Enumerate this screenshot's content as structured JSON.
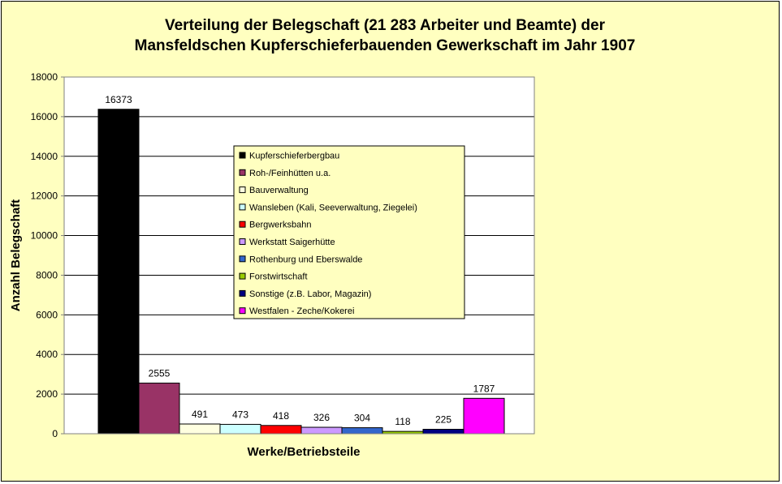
{
  "chart_data": {
    "type": "bar",
    "title_lines": [
      "Verteilung der Belegschaft (21 283 Arbeiter und Beamte) der",
      "Mansfeldschen Kupferschieferbauenden Gewerkschaft im Jahr 1907"
    ],
    "xlabel": "Werke/Betriebsteile",
    "ylabel": "Anzahl Belegschaft",
    "ylim": [
      0,
      18000
    ],
    "yticks": [
      "0",
      "2000",
      "4000",
      "6000",
      "8000",
      "10000",
      "12000",
      "14000",
      "16000",
      "18000"
    ],
    "grid": true,
    "legend_position": "center-right",
    "series": [
      {
        "name": "Kupferschieferbergbau",
        "value": 16373,
        "color": "#000000"
      },
      {
        "name": "Roh-/Feinhütten u.a.",
        "value": 2555,
        "color": "#993366"
      },
      {
        "name": "Bauverwaltung",
        "value": 491,
        "color": "#ffffe0"
      },
      {
        "name": "Wansleben (Kali, Seeverwaltung, Ziegelei)",
        "value": 473,
        "color": "#ccffff"
      },
      {
        "name": "Bergwerksbahn",
        "value": 418,
        "color": "#ff0000"
      },
      {
        "name": "Werkstatt Saigerhütte",
        "value": 326,
        "color": "#cc99ff"
      },
      {
        "name": "Rothenburg und Eberswalde",
        "value": 304,
        "color": "#3366cc"
      },
      {
        "name": "Forstwirtschaft",
        "value": 118,
        "color": "#99cc00"
      },
      {
        "name": "Sonstige (z.B. Labor, Magazin)",
        "value": 225,
        "color": "#000080"
      },
      {
        "name": "Westfalen - Zeche/Kokerei",
        "value": 1787,
        "color": "#ff00ff"
      }
    ],
    "value_labels": [
      "16373",
      "2555",
      "491",
      "473",
      "418",
      "326",
      "304",
      "118",
      "225",
      "1787"
    ]
  }
}
